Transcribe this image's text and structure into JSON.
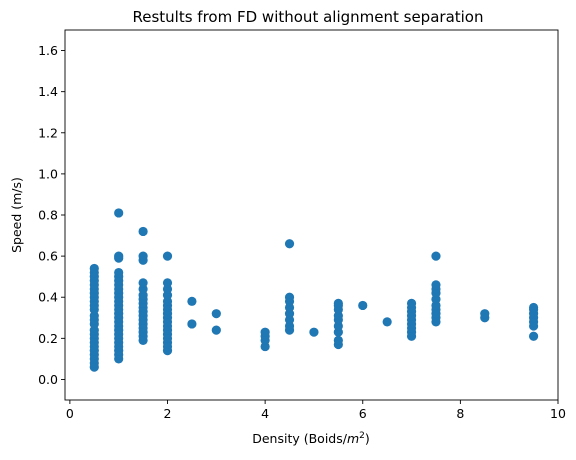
{
  "chart_data": {
    "type": "scatter",
    "title": "Restults from FD without alignment separation",
    "xlabel_main": "Density (Boids/",
    "xlabel_unit_base": "m",
    "xlabel_unit_exp": "2",
    "xlabel_close": ")",
    "ylabel": "Speed (m/s)",
    "xlim": [
      -0.1,
      10.0
    ],
    "ylim": [
      -0.1,
      1.7
    ],
    "xticks": [
      0,
      2,
      4,
      6,
      8,
      10
    ],
    "yticks": [
      0.0,
      0.2,
      0.4,
      0.6,
      0.8,
      1.0,
      1.2,
      1.4,
      1.6
    ],
    "xtick_labels": [
      "0",
      "2",
      "4",
      "6",
      "8",
      "10"
    ],
    "ytick_labels": [
      "0.0",
      "0.2",
      "0.4",
      "0.6",
      "0.8",
      "1.0",
      "1.2",
      "1.4",
      "1.6"
    ],
    "grid": false,
    "marker_color": "#1f77b4",
    "points": [
      {
        "x": 0.5,
        "ys": [
          0.06,
          0.08,
          0.1,
          0.12,
          0.14,
          0.16,
          0.18,
          0.2,
          0.22,
          0.24,
          0.27,
          0.29,
          0.31,
          0.34,
          0.36,
          0.38,
          0.4,
          0.42,
          0.44,
          0.46,
          0.48,
          0.5,
          0.52,
          0.54
        ]
      },
      {
        "x": 1.0,
        "ys": [
          0.1,
          0.12,
          0.14,
          0.16,
          0.18,
          0.2,
          0.22,
          0.24,
          0.26,
          0.28,
          0.3,
          0.32,
          0.34,
          0.36,
          0.38,
          0.4,
          0.42,
          0.44,
          0.46,
          0.48,
          0.5,
          0.52,
          0.59,
          0.6,
          0.81
        ]
      },
      {
        "x": 1.5,
        "ys": [
          0.19,
          0.21,
          0.23,
          0.25,
          0.27,
          0.29,
          0.31,
          0.33,
          0.35,
          0.37,
          0.39,
          0.41,
          0.44,
          0.47,
          0.58,
          0.6,
          0.72
        ]
      },
      {
        "x": 2.0,
        "ys": [
          0.14,
          0.16,
          0.18,
          0.2,
          0.22,
          0.24,
          0.26,
          0.28,
          0.3,
          0.32,
          0.34,
          0.36,
          0.38,
          0.41,
          0.44,
          0.47,
          0.6
        ]
      },
      {
        "x": 2.5,
        "ys": [
          0.27,
          0.38
        ]
      },
      {
        "x": 3.0,
        "ys": [
          0.24,
          0.32
        ]
      },
      {
        "x": 4.0,
        "ys": [
          0.16,
          0.19,
          0.21,
          0.23
        ]
      },
      {
        "x": 4.5,
        "ys": [
          0.24,
          0.26,
          0.29,
          0.32,
          0.35,
          0.38,
          0.4,
          0.66
        ]
      },
      {
        "x": 5.0,
        "ys": [
          0.23
        ]
      },
      {
        "x": 5.5,
        "ys": [
          0.17,
          0.19,
          0.23,
          0.26,
          0.29,
          0.31,
          0.34,
          0.36,
          0.37
        ]
      },
      {
        "x": 6.0,
        "ys": [
          0.36
        ]
      },
      {
        "x": 6.5,
        "ys": [
          0.28
        ]
      },
      {
        "x": 7.0,
        "ys": [
          0.21,
          0.23,
          0.25,
          0.27,
          0.29,
          0.31,
          0.33,
          0.35,
          0.37
        ]
      },
      {
        "x": 7.5,
        "ys": [
          0.28,
          0.3,
          0.32,
          0.34,
          0.36,
          0.39,
          0.42,
          0.44,
          0.46,
          0.6
        ]
      },
      {
        "x": 8.5,
        "ys": [
          0.3,
          0.32
        ]
      },
      {
        "x": 9.5,
        "ys": [
          0.21,
          0.26,
          0.28,
          0.3,
          0.32,
          0.34,
          0.35
        ]
      }
    ]
  }
}
